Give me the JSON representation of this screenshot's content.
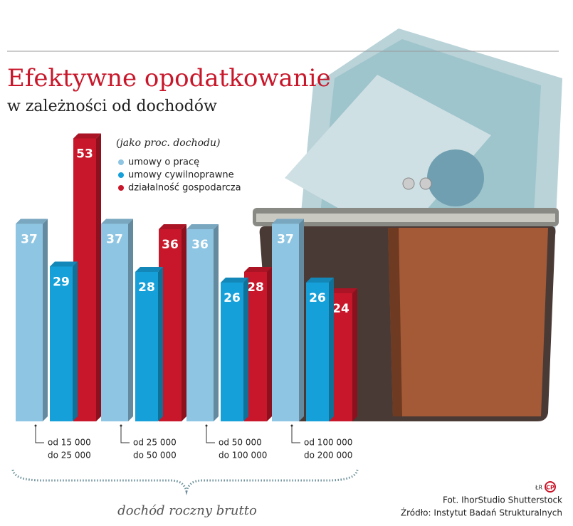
{
  "chart_data": {
    "type": "bar",
    "title": "Efektywne opodatkowanie",
    "subtitle": "w zależności od dochodów",
    "unit_note": "(jako proc. dochodu)",
    "x_label": "dochód roczny brutto",
    "categories": [
      [
        "od 15 000",
        "do 25 000"
      ],
      [
        "od 25 000",
        "do 50 000"
      ],
      [
        "od 50 000",
        "do 100 000"
      ],
      [
        "od 100 000",
        "do 200 000"
      ]
    ],
    "series": [
      {
        "name": "umowy o pracę",
        "color": "#8ec5e2",
        "values": [
          37,
          37,
          36,
          37
        ]
      },
      {
        "name": "umowy cywilnoprawne",
        "color": "#16a0d9",
        "values": [
          29,
          28,
          26,
          26
        ]
      },
      {
        "name": "działalność gospodarcza",
        "color": "#c8172a",
        "values": [
          53,
          36,
          28,
          24
        ]
      }
    ],
    "photo_credit": "Fot. IhorStudio Shutterstock",
    "source": "Źródło: Instytut Badań Strukturalnych",
    "logo": "ŁR",
    "logo2": "CP"
  }
}
